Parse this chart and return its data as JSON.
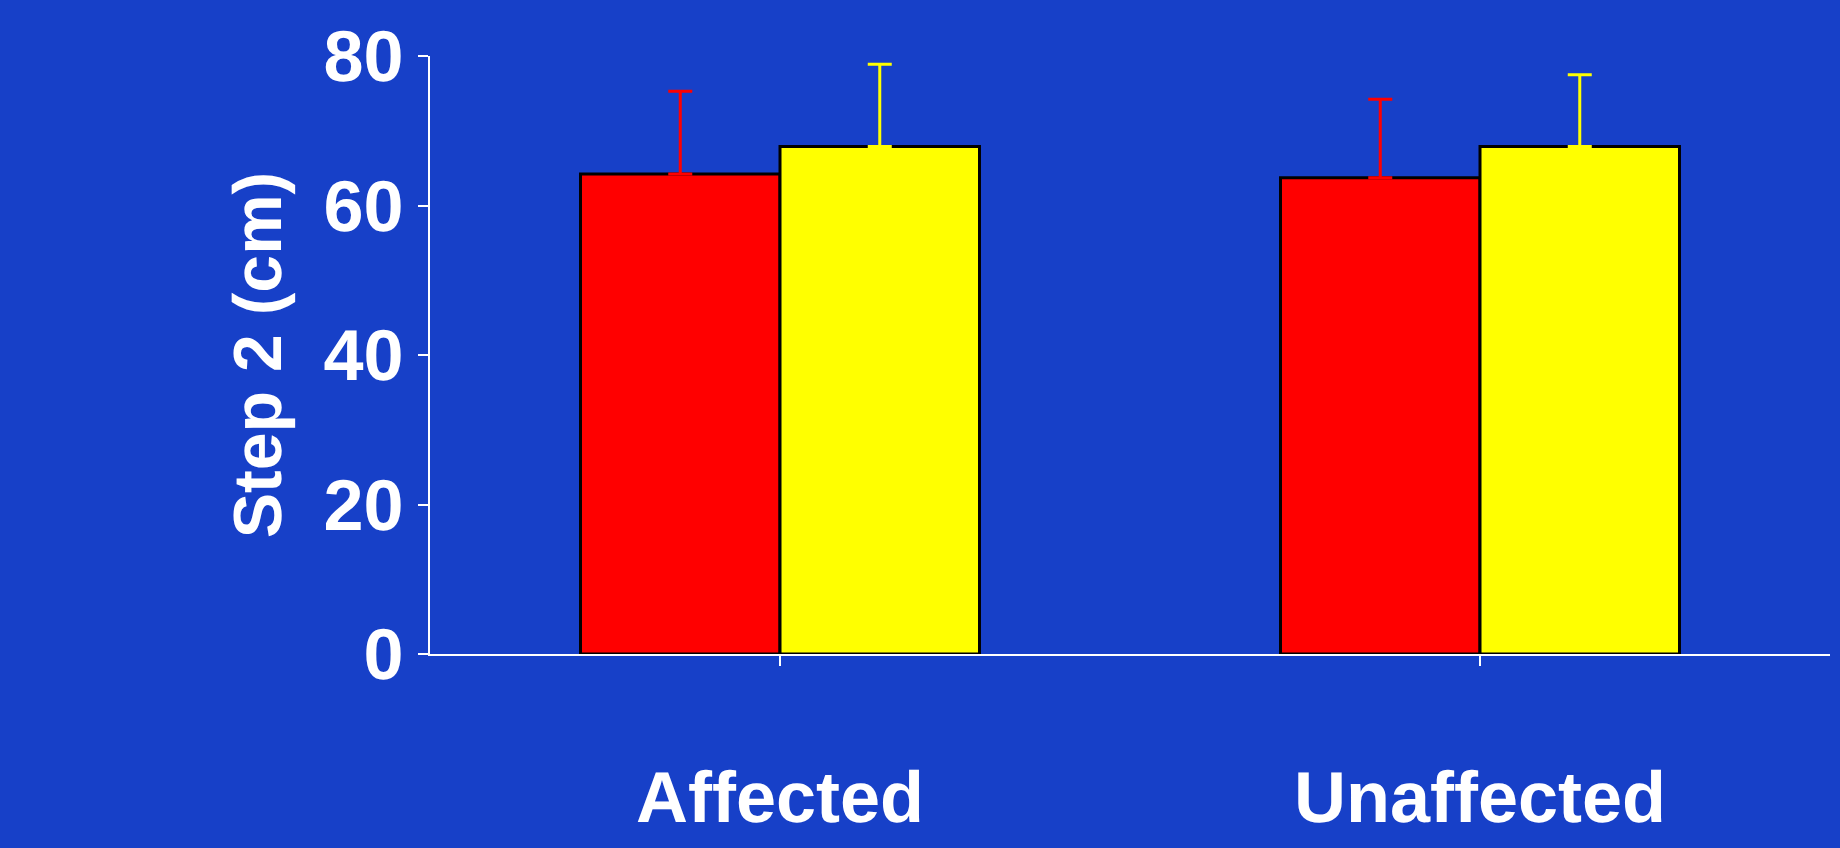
{
  "chart_data": {
    "type": "bar",
    "ylabel": "Step 2 (cm)",
    "categories": [
      "Affected",
      "Unaffected"
    ],
    "series": [
      {
        "color": "#ff0000",
        "values": [
          64.2,
          63.7
        ],
        "errors": [
          [
            64.2,
            75.3
          ],
          [
            63.7,
            74.2
          ]
        ]
      },
      {
        "color": "#ffff00",
        "values": [
          67.9,
          67.9
        ],
        "errors": [
          [
            67.9,
            78.9
          ],
          [
            67.9,
            77.5
          ]
        ]
      }
    ],
    "ylim": [
      0,
      80
    ],
    "yticks": [
      0,
      20,
      40,
      60,
      80
    ],
    "grid": false,
    "legend": false
  }
}
